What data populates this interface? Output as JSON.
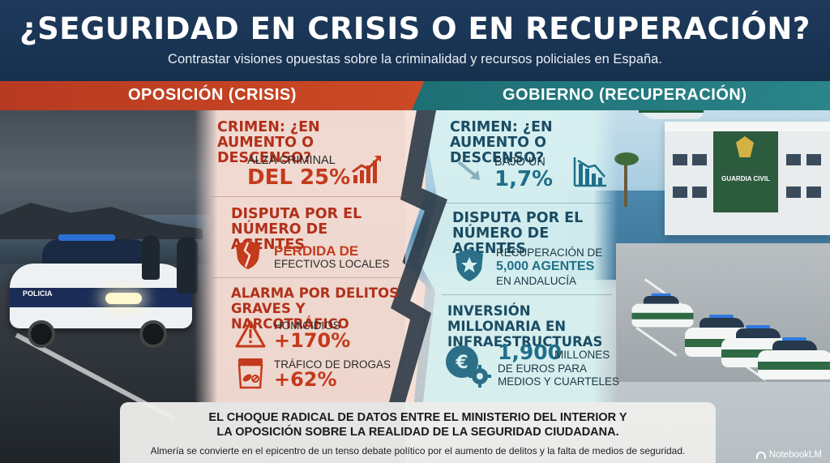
{
  "header": {
    "title": "¿SEGURIDAD EN CRISIS O EN RECUPERACIÓN?",
    "subtitle": "Contrastar visiones opuestas sobre la criminalidad y recursos policiales en España."
  },
  "left": {
    "heading": "OPOSICIÓN (CRISIS)",
    "color": "#c43a1d",
    "crime": {
      "title": "CRIMEN: ¿EN AUMENTO O DESCENSO?",
      "label": "ALZA CRIMINAL",
      "value": "DEL 25%",
      "icon": "trend-up-chart-icon"
    },
    "agents": {
      "title": "DISPUTA POR EL NÚMERO DE AGENTES",
      "value": "PÉRDIDA DE",
      "label": "EFECTIVOS LOCALES",
      "icon": "broken-badge-icon"
    },
    "alarm": {
      "title": "ALARMA POR DELITOS GRAVES Y NARCOTRÁFICO",
      "homicides_label": "HOMICIDIOS",
      "homicides_value": "+170%",
      "drugs_label": "TRÁFICO DE DROGAS",
      "drugs_value": "+62%",
      "icons": [
        "warning-icon",
        "pill-bag-icon"
      ]
    }
  },
  "right": {
    "heading": "GOBIERNO (RECUPERACIÓN)",
    "color": "#1f6f8a",
    "crime": {
      "title": "CRIMEN: ¿EN AUMENTO O DESCENSO?",
      "label": "BAJÓ UN",
      "value": "1,7%",
      "icons": [
        "arrow-down-right-icon",
        "trend-down-chart-icon"
      ]
    },
    "agents": {
      "title": "DISPUTA POR EL NÚMERO DE AGENTES",
      "label_1": "RECUPERACIÓN DE",
      "value": "5,000 AGENTES",
      "label_2": "EN ANDALUCÍA",
      "icon": "police-star-badge-icon"
    },
    "investment": {
      "title": "INVERSIÓN MILLONARIA EN INFRAESTRUCTURAS",
      "value": "1,900",
      "unit": "MILLONES",
      "label_1": "DE EUROS PARA",
      "label_2": "MEDIOS Y CUARTELES",
      "icon": "euro-gear-icon"
    },
    "building_sign": "GUARDIA CIVIL"
  },
  "bottom": {
    "headline_1": "EL CHOQUE RADICAL DE DATOS ENTRE EL MINISTERIO DEL INTERIOR Y",
    "headline_2": "LA OPOSICIÓN SOBRE LA REALIDAD DE LA SEGURIDAD CIUDADANA.",
    "subtitle": "Almería se convierte en el epicentro de un tenso debate político por el aumento de delitos y la falta de medios de seguridad."
  },
  "brand": "NotebookLM",
  "car_text": "POLICIA"
}
